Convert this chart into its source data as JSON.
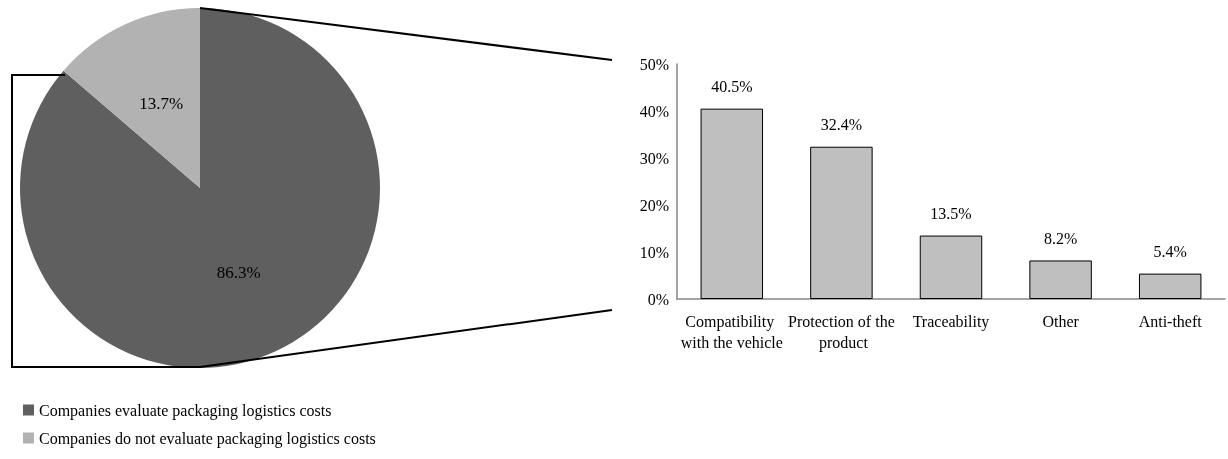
{
  "chart_data": [
    {
      "type": "pie",
      "categories": [
        "Companies evaluate packaging logistics costs",
        "Companies do not evaluate packaging logistics costs"
      ],
      "values": [
        86.3,
        13.7
      ],
      "colors": [
        "#5f5f5f",
        "#b2b2b2"
      ],
      "value_labels": [
        "86.3%",
        "13.7%"
      ],
      "legend": "bottom left"
    },
    {
      "type": "bar",
      "categories": [
        "Compatibility with the vehicle",
        "Protection of the product",
        "Traceability",
        "Other",
        "Anti-theft"
      ],
      "values": [
        40.5,
        32.4,
        13.5,
        8.2,
        5.4
      ],
      "color": "#bfbfbf",
      "value_labels": [
        "40.5%",
        "32.4%",
        "13.5%",
        "8.2%",
        "5.4%"
      ],
      "ylim": [
        0,
        50
      ],
      "yticks": [
        {
          "value": 0,
          "label": "0%"
        },
        {
          "value": 10,
          "label": "10%"
        },
        {
          "value": 20,
          "label": "20%"
        },
        {
          "value": 30,
          "label": "30%"
        },
        {
          "value": 40,
          "label": "40%"
        },
        {
          "value": 50,
          "label": "50%"
        }
      ]
    }
  ]
}
